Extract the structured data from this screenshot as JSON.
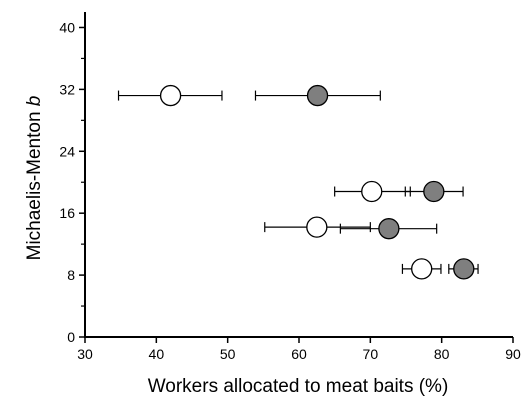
{
  "chart_data": {
    "type": "scatter",
    "xlabel": "Workers allocated to meat baits (%)",
    "ylabel_prefix": "Michaelis-Menton ",
    "ylabel_italic": "b",
    "xlim": [
      30,
      90
    ],
    "ylim": [
      0,
      42
    ],
    "x_ticks": [
      "30",
      "40",
      "50",
      "60",
      "70",
      "80",
      "90"
    ],
    "y_ticks": [
      "0",
      "8",
      "16",
      "24",
      "32",
      "40"
    ],
    "y_minor_ticks": [
      4,
      12,
      20,
      28,
      36
    ],
    "grid": false,
    "legend": "none",
    "series": [
      {
        "marker": "open-circle",
        "color": "#ffffff",
        "points": [
          {
            "x": 42,
            "y": 31.2,
            "x_err_low": 34.7,
            "x_err_high": 49.2
          },
          {
            "x": 70.2,
            "y": 18.8,
            "x_err_low": 65.0,
            "x_err_high": 75.6
          },
          {
            "x": 62.5,
            "y": 14.2,
            "x_err_low": 55.2,
            "x_err_high": 70.0
          },
          {
            "x": 77.2,
            "y": 8.8,
            "x_err_low": 74.5,
            "x_err_high": 79.9
          }
        ]
      },
      {
        "marker": "filled-circle",
        "color": "#7f7f7f",
        "points": [
          {
            "x": 62.6,
            "y": 31.2,
            "x_err_low": 53.9,
            "x_err_high": 71.4
          },
          {
            "x": 78.9,
            "y": 18.8,
            "x_err_low": 74.9,
            "x_err_high": 83.0
          },
          {
            "x": 72.6,
            "y": 14.0,
            "x_err_low": 65.8,
            "x_err_high": 79.3
          },
          {
            "x": 83.1,
            "y": 8.8,
            "x_err_low": 81.0,
            "x_err_high": 85.1
          }
        ]
      }
    ]
  }
}
